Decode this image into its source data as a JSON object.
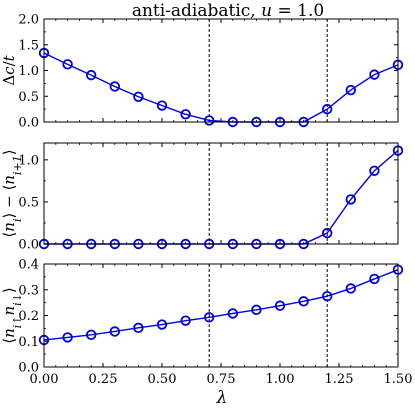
{
  "figure": {
    "title": "anti-adiabatic, u = 1.0",
    "title_parts": {
      "prefix": "anti-adiabatic, ",
      "var": "u",
      "suffix": " = 1.0"
    },
    "xlabel": "λ"
  },
  "colors": {
    "series": "#0000dd",
    "axes": "#000000",
    "vline": "#000000"
  },
  "chart_data": [
    {
      "type": "line",
      "title": "anti-adiabatic, u = 1.0",
      "ylabel": "Δc/t",
      "xlim": [
        0.0,
        1.5
      ],
      "ylim": [
        0.0,
        2.0
      ],
      "yticks": [
        0.0,
        0.5,
        1.0,
        1.5,
        2.0
      ],
      "ytick_labels": [
        "0.0",
        "0.5",
        "1.0",
        "1.5",
        "2.0"
      ],
      "vlines": [
        0.7,
        1.2
      ],
      "marker": "open-circle",
      "x": [
        0.0,
        0.1,
        0.2,
        0.3,
        0.4,
        0.5,
        0.6,
        0.7,
        0.8,
        0.9,
        1.0,
        1.1,
        1.2,
        1.3,
        1.4,
        1.5
      ],
      "y": [
        1.34,
        1.12,
        0.91,
        0.69,
        0.49,
        0.32,
        0.15,
        0.03,
        0.0,
        0.0,
        0.0,
        0.0,
        0.25,
        0.62,
        0.92,
        1.11
      ]
    },
    {
      "type": "line",
      "ylabel": "⟨n_i⟩ − ⟨n_{i+1}⟩",
      "xlim": [
        0.0,
        1.5
      ],
      "ylim": [
        0.0,
        1.2
      ],
      "yticks": [
        0.0,
        0.5,
        1.0
      ],
      "ytick_labels": [
        "0.0",
        "0.5",
        "1.0"
      ],
      "vlines": [
        0.7,
        1.2
      ],
      "marker": "open-circle",
      "x": [
        0.0,
        0.1,
        0.2,
        0.3,
        0.4,
        0.5,
        0.6,
        0.7,
        0.8,
        0.9,
        1.0,
        1.1,
        1.2,
        1.3,
        1.4,
        1.5
      ],
      "y": [
        0.0,
        0.0,
        0.0,
        0.0,
        0.0,
        0.0,
        0.0,
        0.0,
        0.0,
        0.0,
        0.0,
        0.0,
        0.13,
        0.53,
        0.87,
        1.11
      ]
    },
    {
      "type": "line",
      "xlabel": "λ",
      "ylabel": "⟨n_i↑ n_i↓⟩",
      "xlim": [
        0.0,
        1.5
      ],
      "ylim": [
        0.0,
        0.4
      ],
      "yticks": [
        0.0,
        0.1,
        0.2,
        0.3,
        0.4
      ],
      "ytick_labels": [
        "0.0",
        "0.1",
        "0.2",
        "0.3",
        "0.4"
      ],
      "xticks": [
        0.0,
        0.25,
        0.5,
        0.75,
        1.0,
        1.25,
        1.5
      ],
      "xtick_labels": [
        "0.00",
        "0.25",
        "0.50",
        "0.75",
        "1.00",
        "1.25",
        "1.50"
      ],
      "vlines": [
        0.7,
        1.2
      ],
      "marker": "open-circle",
      "x": [
        0.0,
        0.1,
        0.2,
        0.3,
        0.4,
        0.5,
        0.6,
        0.7,
        0.8,
        0.9,
        1.0,
        1.1,
        1.2,
        1.3,
        1.4,
        1.5
      ],
      "y": [
        0.105,
        0.115,
        0.125,
        0.138,
        0.152,
        0.165,
        0.18,
        0.193,
        0.208,
        0.222,
        0.238,
        0.255,
        0.275,
        0.305,
        0.342,
        0.378
      ]
    }
  ]
}
